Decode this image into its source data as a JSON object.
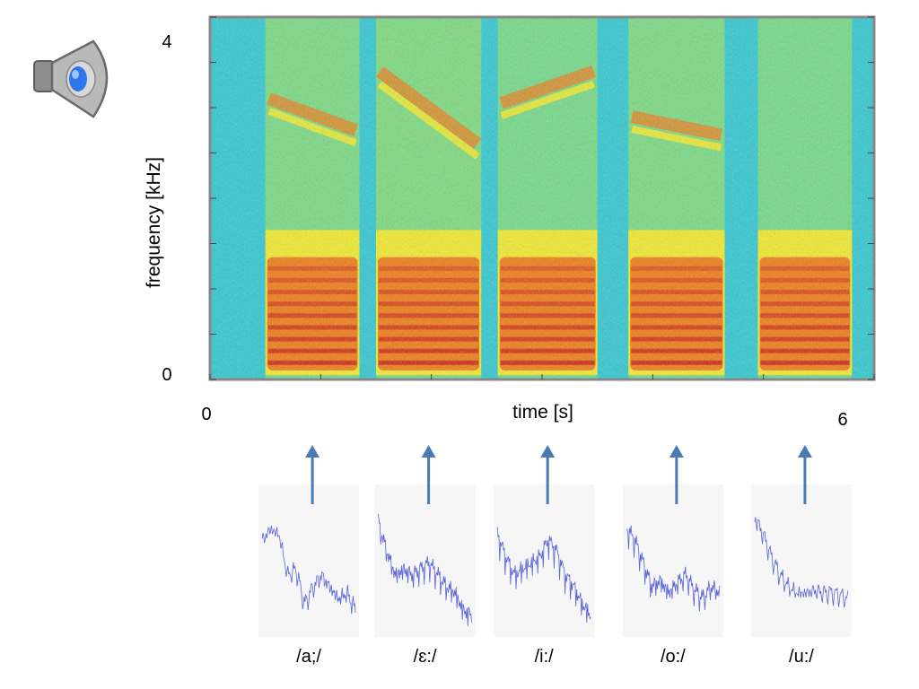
{
  "icon": "speaker-icon",
  "chart_data": {
    "type": "heatmap",
    "xlabel": "time [s]",
    "ylabel": "frequency [kHz]",
    "xlim": [
      0,
      6
    ],
    "ylim": [
      0,
      4
    ],
    "x_tick_labels": [
      "0",
      "6"
    ],
    "y_tick_labels": [
      "0",
      "4"
    ],
    "colors": {
      "background": "#2fc7d1",
      "low": "#8ee06a",
      "mid": "#f2ea2a",
      "high": "#f07a14",
      "peak": "#c4180d"
    },
    "segments": [
      {
        "label": "/a;/",
        "start": 0.5,
        "end": 1.35,
        "intensity": 0.9,
        "upper_formant_khz": [
          3.1,
          2.75
        ]
      },
      {
        "label": "/ɛ:/",
        "start": 1.5,
        "end": 2.45,
        "intensity": 0.95,
        "upper_formant_khz": [
          3.4,
          2.6
        ]
      },
      {
        "label": "/i:/",
        "start": 2.6,
        "end": 3.5,
        "intensity": 0.85,
        "upper_formant_khz": [
          3.05,
          3.4
        ]
      },
      {
        "label": "/o:/",
        "start": 3.78,
        "end": 4.65,
        "intensity": 0.9,
        "upper_formant_khz": [
          2.9,
          2.7
        ]
      },
      {
        "label": "/u:/",
        "start": 4.95,
        "end": 5.8,
        "intensity": 0.85,
        "upper_formant_khz": []
      }
    ]
  },
  "spectra": [
    {
      "label": "/a;/",
      "shape": [
        0.75,
        0.85,
        0.8,
        0.45,
        0.5,
        0.2,
        0.35,
        0.45,
        0.35,
        0.25,
        0.3,
        0.15
      ]
    },
    {
      "label": "/ɛ:/",
      "shape": [
        0.9,
        0.65,
        0.45,
        0.5,
        0.45,
        0.5,
        0.55,
        0.45,
        0.35,
        0.3,
        0.15,
        0.1
      ]
    },
    {
      "label": "/i:/",
      "shape": [
        0.8,
        0.6,
        0.45,
        0.5,
        0.55,
        0.6,
        0.75,
        0.65,
        0.45,
        0.35,
        0.2,
        0.1
      ]
    },
    {
      "label": "/o:/",
      "shape": [
        0.85,
        0.75,
        0.55,
        0.35,
        0.4,
        0.3,
        0.38,
        0.45,
        0.32,
        0.25,
        0.35,
        0.3
      ]
    },
    {
      "label": "/u:/",
      "shape": [
        0.95,
        0.8,
        0.6,
        0.45,
        0.35,
        0.3,
        0.3,
        0.32,
        0.3,
        0.3,
        0.28,
        0.25
      ]
    }
  ]
}
